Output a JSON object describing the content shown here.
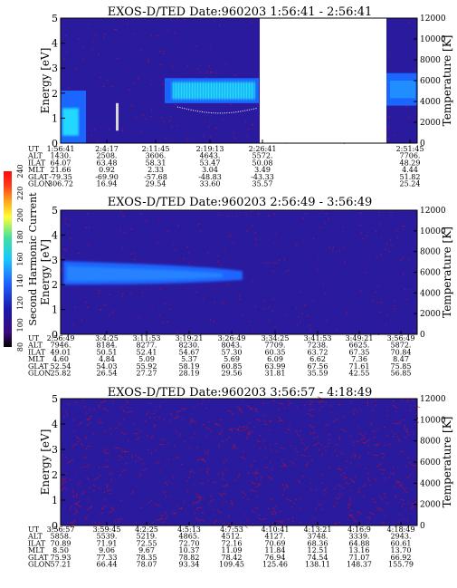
{
  "colors": {
    "background": "#2a1a9e",
    "band_cyan": "#22d8ff",
    "band_blue": "#1a66ff",
    "noise_red": "#c0102a",
    "ilat_curve": "#ffffff",
    "colorbar": [
      "#000000",
      "#3a0a7a",
      "#1a1ab0",
      "#1f60ff",
      "#19c8ff",
      "#3fe0a0",
      "#ffff33",
      "#ff9a1a",
      "#ff3a1a",
      "#ff0a0a"
    ]
  },
  "colorbar": {
    "label": "Second Harmonic Current",
    "ticks": [
      "80",
      "100",
      "120",
      "140",
      "160",
      "180",
      "200",
      "220",
      "240"
    ]
  },
  "chart_data": [
    {
      "type": "heatmap",
      "title": "EXOS-D/TED   Date:960203   1:56:41 - 2:56:41",
      "ylabel": "Energy [eV]",
      "ylabel_right": "Temperature [K]",
      "ylim": [
        0,
        5
      ],
      "ylim_right": [
        0,
        12000
      ],
      "yticks": [
        "0",
        "1",
        "2",
        "3",
        "4",
        "5"
      ],
      "yticks_right": [
        "0",
        "2000",
        "4000",
        "6000",
        "8000",
        "10000",
        "12000"
      ],
      "data_gap": true,
      "rows": [
        {
          "label": "UT",
          "values": [
            "1:56:41",
            "2:4:17",
            "2:11:45",
            "2:19:13",
            "2:26:41",
            "2:51:45"
          ]
        },
        {
          "label": "ALT",
          "values": [
            "1430.",
            "2508.",
            "3606.",
            "4643.",
            "5572.",
            "7706."
          ]
        },
        {
          "label": "ILAT",
          "values": [
            "64.07",
            "63.48",
            "58.31",
            "53.47",
            "50.08",
            "48.29"
          ]
        },
        {
          "label": "MLT",
          "values": [
            "21.66",
            "0.92",
            "2.33",
            "3.04",
            "3.49",
            "4.44"
          ]
        },
        {
          "label": "GLAT",
          "values": [
            "-79.35",
            "-69.90",
            "-57.68",
            "-48.83",
            "-43.33",
            "51.82"
          ]
        },
        {
          "label": "GLON",
          "values": [
            "306.72",
            "16.94",
            "29.54",
            "33.60",
            "35.57",
            "25.24"
          ]
        }
      ]
    },
    {
      "type": "heatmap",
      "title": "EXOS-D/TED   Date:960203   2:56:49 - 3:56:49",
      "ylabel": "Energy [eV]",
      "ylabel_right": "Temperature [K]",
      "ylim": [
        0,
        5
      ],
      "ylim_right": [
        0,
        12000
      ],
      "yticks": [
        "0",
        "1",
        "2",
        "3",
        "4",
        "5"
      ],
      "yticks_right": [
        "0",
        "2000",
        "4000",
        "6000",
        "8000",
        "10000",
        "12000"
      ],
      "rows": [
        {
          "label": "UT",
          "values": [
            "2:56:49",
            "3:4:25",
            "3:11:53",
            "3:19:21",
            "3:26:49",
            "3:34:25",
            "3:41:53",
            "3:49:21",
            "3:56:49"
          ]
        },
        {
          "label": "ALT",
          "values": [
            "7946.",
            "8184.",
            "8277.",
            "8230.",
            "8043.",
            "7709.",
            "7238.",
            "6625.",
            "5872."
          ]
        },
        {
          "label": "ILAT",
          "values": [
            "49.01",
            "50.51",
            "52.41",
            "54.67",
            "57.30",
            "60.35",
            "63.72",
            "67.35",
            "70.84"
          ]
        },
        {
          "label": "MLT",
          "values": [
            "4.60",
            "4.84",
            "5.09",
            "5.37",
            "5.69",
            "6.09",
            "6.62",
            "7.36",
            "8.47"
          ]
        },
        {
          "label": "GLAT",
          "values": [
            "52.54",
            "54.03",
            "55.92",
            "58.19",
            "60.85",
            "63.99",
            "67.56",
            "71.61",
            "75.85"
          ]
        },
        {
          "label": "GLON",
          "values": [
            "25.82",
            "26.54",
            "27.27",
            "28.19",
            "29.56",
            "31.81",
            "35.59",
            "42.55",
            "56.85"
          ]
        }
      ]
    },
    {
      "type": "heatmap",
      "title": "EXOS-D/TED   Date:960203   3:56:57 - 4:18:49",
      "ylabel": "Energy [eV]",
      "ylabel_right": "Temperature [K]",
      "ylim": [
        0,
        5
      ],
      "ylim_right": [
        0,
        12000
      ],
      "yticks": [
        "0",
        "1",
        "2",
        "3",
        "4",
        "5"
      ],
      "yticks_right": [
        "0",
        "2000",
        "4000",
        "6000",
        "8000",
        "10000",
        "12000"
      ],
      "rows": [
        {
          "label": "UT",
          "values": [
            "3:56:57",
            "3:59:45",
            "4:2:25",
            "4:5:13",
            "4:7:53",
            "4:10:41",
            "4:13:21",
            "4:16:9",
            "4:18:49"
          ]
        },
        {
          "label": "ALT",
          "values": [
            "5858.",
            "5539.",
            "5219.",
            "4865.",
            "4512.",
            "4127.",
            "3748.",
            "3339.",
            "2943."
          ]
        },
        {
          "label": "ILAT",
          "values": [
            "70.89",
            "71.91",
            "72.55",
            "72.70",
            "72.16",
            "70.69",
            "68.36",
            "64.88",
            "60.61"
          ]
        },
        {
          "label": "MLT",
          "values": [
            "8.50",
            "9.06",
            "9.67",
            "10.37",
            "11.09",
            "11.84",
            "12.51",
            "13.16",
            "13.70"
          ]
        },
        {
          "label": "GLAT",
          "values": [
            "75.93",
            "77.33",
            "78.35",
            "78.82",
            "78.42",
            "76.94",
            "74.54",
            "71.07",
            "66.92"
          ]
        },
        {
          "label": "GLON",
          "values": [
            "57.21",
            "66.44",
            "78.07",
            "93.34",
            "109.45",
            "125.46",
            "138.11",
            "148.37",
            "155.79"
          ]
        }
      ]
    }
  ]
}
